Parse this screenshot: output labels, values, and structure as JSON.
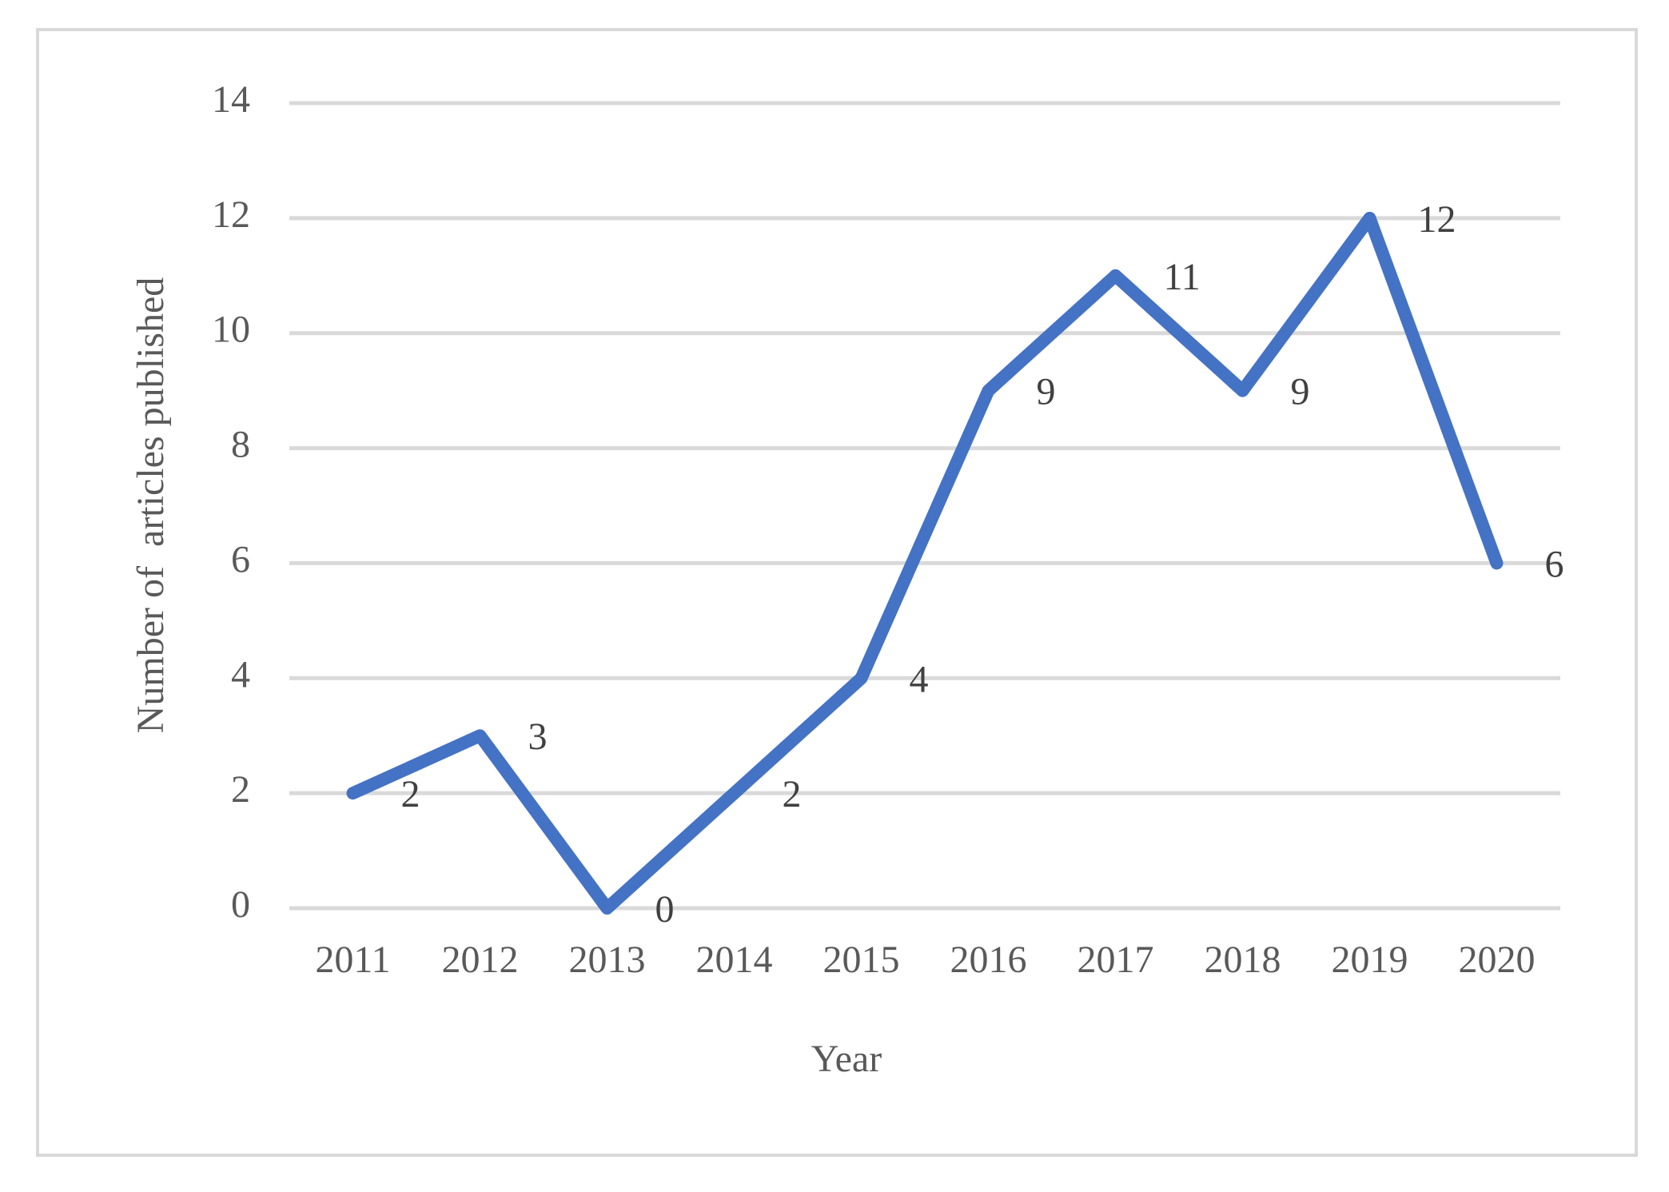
{
  "chart_data": {
    "type": "line",
    "xlabel": "Year",
    "ylabel": "Number of  articles published",
    "categories": [
      "2011",
      "2012",
      "2013",
      "2014",
      "2015",
      "2016",
      "2017",
      "2018",
      "2019",
      "2020"
    ],
    "values": [
      2,
      3,
      0,
      2,
      4,
      9,
      11,
      9,
      12,
      6
    ],
    "color": "#4472c4",
    "ylim": [
      0,
      14
    ],
    "yticks": [
      0,
      2,
      4,
      6,
      8,
      10,
      12,
      14
    ],
    "grid": true,
    "data_labels": true
  }
}
